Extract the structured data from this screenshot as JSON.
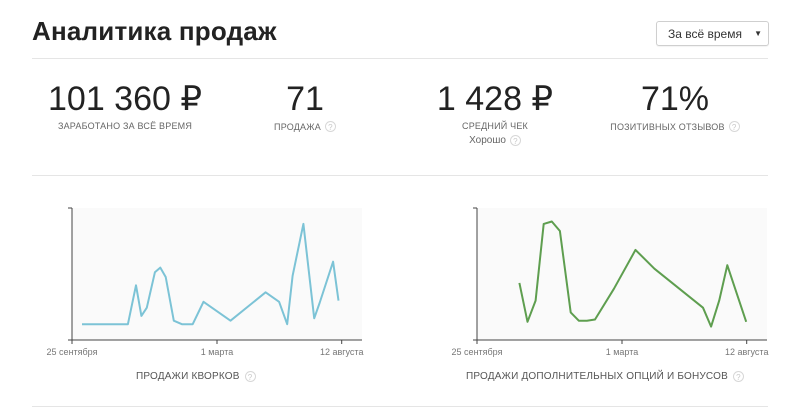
{
  "header": {
    "title": "Аналитика продаж",
    "period_selected": "За всё время"
  },
  "stats": [
    {
      "value": "101 360 ₽",
      "label": "ЗАРАБОТАНО ЗА ВСЁ ВРЕМЯ",
      "has_help": false
    },
    {
      "value": "71",
      "label": "ПРОДАЖА",
      "has_help": true
    },
    {
      "value": "1 428 ₽",
      "label": "СРЕДНИЙ ЧЕК",
      "sublabel": "Хорошо",
      "has_help": true
    },
    {
      "value": "71%",
      "label": "ПОЗИТИВНЫХ ОТЗЫВОВ",
      "has_help": true
    }
  ],
  "help_icon": "question-icon",
  "colors": {
    "kworks_line": "#7cc3d6",
    "options_line": "#5e9e4f",
    "plot_bg": "#fafafa",
    "axis": "#444444"
  },
  "chart_data": [
    {
      "type": "line",
      "title": "ПРОДАЖИ КВОРКОВ",
      "x_tick_labels": [
        "25 сентября",
        "1 марта",
        "12 августа"
      ],
      "x": [
        0,
        0.1,
        0.15,
        0.155,
        0.17,
        0.2,
        0.22,
        0.24,
        0.27,
        0.29,
        0.31,
        0.34,
        0.37,
        0.39,
        0.41,
        0.45,
        0.55,
        0.68,
        0.73,
        0.76,
        0.78,
        0.82,
        0.86,
        0.88,
        0.93,
        0.95
      ],
      "values": [
        10,
        10,
        10,
        10,
        10,
        43,
        17,
        24,
        54,
        58,
        50,
        13,
        10,
        10,
        10,
        29,
        13,
        37,
        29,
        10,
        51,
        95,
        15,
        28,
        63,
        30
      ],
      "ylim": [
        0,
        100
      ],
      "color": "#7cc3d6"
    },
    {
      "type": "line",
      "title": "ПРОДАЖИ ДОПОЛНИТЕЛЬНЫХ ОПЦИЙ И БОНУСОВ",
      "x_tick_labels": [
        "25 сентября",
        "1 марта",
        "12 августа"
      ],
      "x": [
        0.12,
        0.15,
        0.18,
        0.21,
        0.24,
        0.27,
        0.31,
        0.34,
        0.37,
        0.4,
        0.47,
        0.55,
        0.62,
        0.8,
        0.83,
        0.86,
        0.89,
        0.96
      ],
      "values": [
        45,
        12,
        30,
        95,
        97,
        89,
        20,
        13,
        13,
        14,
        40,
        73,
        57,
        24,
        8,
        30,
        60,
        12
      ],
      "ylim": [
        0,
        100
      ],
      "color": "#5e9e4f"
    }
  ]
}
